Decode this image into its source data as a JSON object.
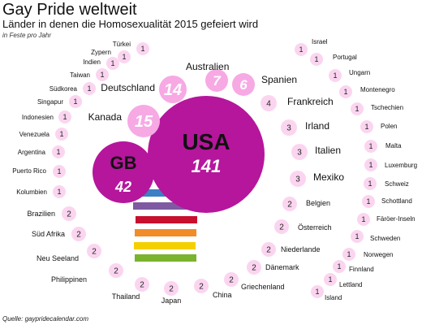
{
  "chart_data": {
    "type": "bubble",
    "title": "Gay Pride weltweit",
    "subtitle": "Länder in denen die Homosexualität 2015 gefeiert wird",
    "unit_note": "in Feste pro Jahr",
    "source": "Quelle: gaypridecalendar.com",
    "colors": {
      "big_bubble": "#b5169c",
      "small_bubble": "#fbd5f0",
      "medium_bubble": "#f7a9e4",
      "label_number": "#ffffff",
      "rainbow": [
        "#3b7fc4",
        "#7f5aa2",
        "#c8102e",
        "#f28c28",
        "#f5d000",
        "#7ab32e"
      ]
    },
    "countries": [
      {
        "name": "USA",
        "value": 141
      },
      {
        "name": "GB",
        "value": 42
      },
      {
        "name": "Kanada",
        "value": 15
      },
      {
        "name": "Deutschland",
        "value": 14
      },
      {
        "name": "Australien",
        "value": 7
      },
      {
        "name": "Spanien",
        "value": 6
      },
      {
        "name": "Frankreich",
        "value": 4
      },
      {
        "name": "Irland",
        "value": 3
      },
      {
        "name": "Italien",
        "value": 3
      },
      {
        "name": "Mexiko",
        "value": 3
      },
      {
        "name": "Belgien",
        "value": 2
      },
      {
        "name": "Österreich",
        "value": 2
      },
      {
        "name": "Niederlande",
        "value": 2
      },
      {
        "name": "Dänemark",
        "value": 2
      },
      {
        "name": "Griechenland",
        "value": 2
      },
      {
        "name": "China",
        "value": 2
      },
      {
        "name": "Japan",
        "value": 2
      },
      {
        "name": "Thailand",
        "value": 2
      },
      {
        "name": "Philippinen",
        "value": 2
      },
      {
        "name": "Neu Seeland",
        "value": 2
      },
      {
        "name": "Süd Afrika",
        "value": 2
      },
      {
        "name": "Brazilien",
        "value": 2
      },
      {
        "name": "Kolumbien",
        "value": 1
      },
      {
        "name": "Puerto Rico",
        "value": 1
      },
      {
        "name": "Argentina",
        "value": 1
      },
      {
        "name": "Venezuela",
        "value": 1
      },
      {
        "name": "Indonesien",
        "value": 1
      },
      {
        "name": "Singapur",
        "value": 1
      },
      {
        "name": "Südkorea",
        "value": 1
      },
      {
        "name": "Taiwan",
        "value": 1
      },
      {
        "name": "Indien",
        "value": 1
      },
      {
        "name": "Zypern",
        "value": 1
      },
      {
        "name": "Türkei",
        "value": 1
      },
      {
        "name": "Israel",
        "value": 1
      },
      {
        "name": "Portugal",
        "value": 1
      },
      {
        "name": "Ungarn",
        "value": 1
      },
      {
        "name": "Montenegro",
        "value": 1
      },
      {
        "name": "Tschechien",
        "value": 1
      },
      {
        "name": "Polen",
        "value": 1
      },
      {
        "name": "Malta",
        "value": 1
      },
      {
        "name": "Luxemburg",
        "value": 1
      },
      {
        "name": "Schweiz",
        "value": 1
      },
      {
        "name": "Schottland",
        "value": 1
      },
      {
        "name": "Färöer-Inseln",
        "value": 1
      },
      {
        "name": "Schweden",
        "value": 1
      },
      {
        "name": "Norwegen",
        "value": 1
      },
      {
        "name": "Finnland",
        "value": 1
      },
      {
        "name": "Lettland",
        "value": 1
      },
      {
        "name": "Island",
        "value": 1
      }
    ]
  }
}
